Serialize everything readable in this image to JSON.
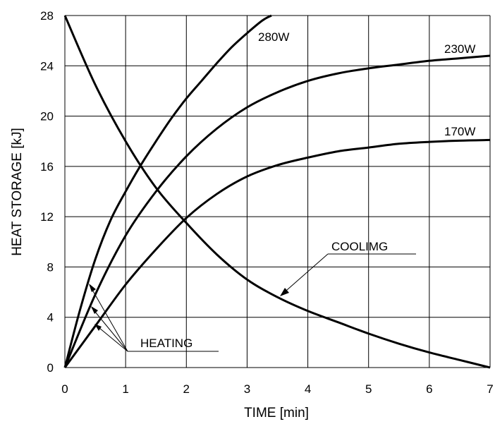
{
  "chart_data": {
    "type": "line",
    "xlabel": "TIME  [min]",
    "ylabel": "HEAT STORAGE  [kJ]",
    "xlim": [
      0,
      7
    ],
    "ylim": [
      0,
      28
    ],
    "xticks": [
      "0",
      "1",
      "2",
      "3",
      "4",
      "5",
      "6",
      "7"
    ],
    "yticks": [
      "0",
      "4",
      "8",
      "12",
      "16",
      "20",
      "24",
      "28"
    ],
    "grid": true,
    "series": [
      {
        "name": "280W",
        "x": [
          0,
          0.25,
          0.5,
          0.75,
          1,
          1.25,
          1.5,
          1.75,
          2,
          2.25,
          2.5,
          2.75,
          3,
          3.25,
          3.4
        ],
        "y": [
          0,
          4.6,
          8.6,
          11.7,
          14.0,
          16.1,
          18.0,
          19.8,
          21.4,
          22.8,
          24.2,
          25.5,
          26.6,
          27.6,
          28.0
        ]
      },
      {
        "name": "230W",
        "x": [
          0,
          0.5,
          1,
          1.5,
          2,
          2.5,
          3,
          3.5,
          4,
          4.5,
          5,
          5.5,
          6,
          6.5,
          7
        ],
        "y": [
          0,
          5.8,
          10.5,
          14.0,
          16.8,
          19.0,
          20.7,
          21.9,
          22.8,
          23.4,
          23.8,
          24.1,
          24.4,
          24.6,
          24.8
        ]
      },
      {
        "name": "170W",
        "x": [
          0,
          0.5,
          1,
          1.5,
          2,
          2.5,
          3,
          3.5,
          4,
          4.5,
          5,
          5.5,
          6,
          6.5,
          7
        ],
        "y": [
          0,
          3.3,
          6.6,
          9.4,
          11.9,
          13.8,
          15.2,
          16.1,
          16.7,
          17.2,
          17.5,
          17.8,
          17.95,
          18.05,
          18.1
        ]
      },
      {
        "name": "COOLIMG",
        "x": [
          0,
          0.5,
          1,
          1.5,
          2,
          2.5,
          3,
          3.5,
          4,
          4.5,
          5,
          5.5,
          6,
          6.5,
          7
        ],
        "y": [
          28.0,
          22.5,
          18.0,
          14.3,
          11.5,
          9.0,
          7.0,
          5.6,
          4.5,
          3.6,
          2.7,
          1.9,
          1.2,
          0.6,
          0.0
        ]
      }
    ],
    "annotations": {
      "curve_280": "280W",
      "curve_230": "230W",
      "curve_170": "170W",
      "cooling": "COOLIMG",
      "heating": "HEATING"
    }
  }
}
